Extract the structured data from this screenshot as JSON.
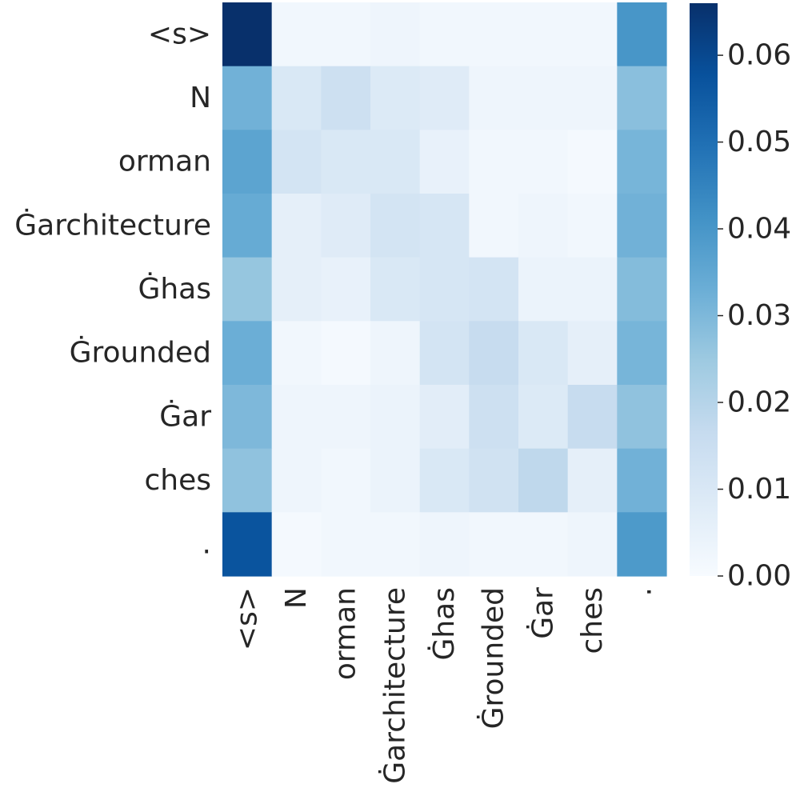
{
  "chart_data": {
    "type": "heatmap",
    "row_labels": [
      "<s>",
      "N",
      "orman",
      "Ġarchitecture",
      "Ġhas",
      "Ġrounded",
      "Ġar",
      "ches",
      "."
    ],
    "col_labels": [
      "<s>",
      "N",
      "orman",
      "Ġarchitecture",
      "Ġhas",
      "Ġrounded",
      "Ġar",
      "ches",
      "."
    ],
    "values": [
      [
        0.066,
        0.002,
        0.002,
        0.003,
        0.002,
        0.002,
        0.002,
        0.002,
        0.04
      ],
      [
        0.032,
        0.01,
        0.014,
        0.009,
        0.008,
        0.003,
        0.003,
        0.003,
        0.028
      ],
      [
        0.036,
        0.012,
        0.01,
        0.01,
        0.005,
        0.002,
        0.002,
        0.001,
        0.031
      ],
      [
        0.034,
        0.006,
        0.008,
        0.012,
        0.011,
        0.002,
        0.003,
        0.002,
        0.032
      ],
      [
        0.026,
        0.006,
        0.005,
        0.01,
        0.011,
        0.012,
        0.004,
        0.004,
        0.029
      ],
      [
        0.033,
        0.002,
        0.001,
        0.003,
        0.012,
        0.016,
        0.01,
        0.006,
        0.031
      ],
      [
        0.03,
        0.003,
        0.003,
        0.004,
        0.007,
        0.014,
        0.009,
        0.016,
        0.027
      ],
      [
        0.027,
        0.003,
        0.002,
        0.004,
        0.01,
        0.013,
        0.018,
        0.006,
        0.032
      ],
      [
        0.057,
        0.001,
        0.002,
        0.002,
        0.003,
        0.002,
        0.002,
        0.003,
        0.039
      ]
    ],
    "colorbar": {
      "min": 0.0,
      "max": 0.066,
      "ticks": [
        "0.00",
        "0.01",
        "0.02",
        "0.03",
        "0.04",
        "0.05",
        "0.06"
      ],
      "colormap": [
        "#f7fbff",
        "#deebf7",
        "#c6dbef",
        "#9ecae1",
        "#6baed6",
        "#4292c6",
        "#2171b5",
        "#08519c",
        "#08306b"
      ]
    }
  }
}
